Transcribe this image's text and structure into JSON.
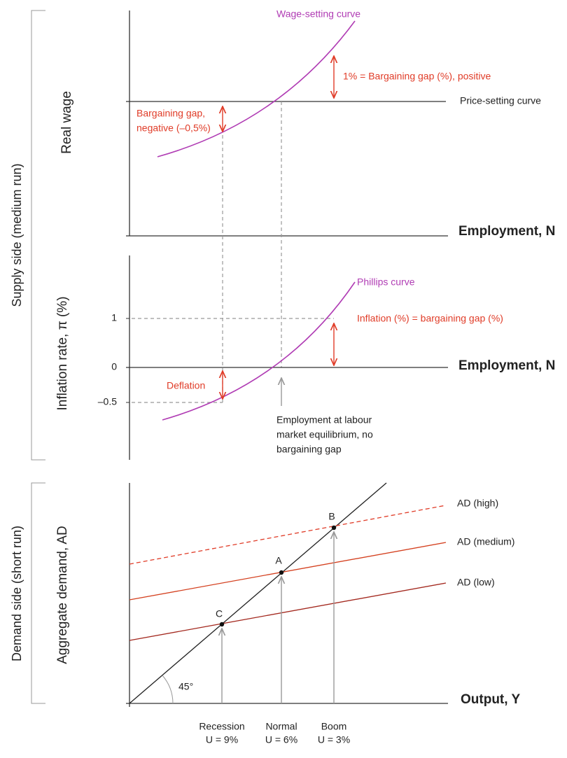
{
  "supply_side": {
    "label": "Supply side (medium run)",
    "labour_market": {
      "y_axis": "Real wage",
      "x_axis": "Employment, N",
      "wage_setting_curve": "Wage-setting curve",
      "price_setting_curve": "Price-setting curve",
      "positive_gap": "1% = Bargaining gap (%), positive",
      "negative_gap": [
        "Bargaining gap,",
        "negative (–0,5%)"
      ]
    },
    "phillips": {
      "y_axis": "Inflation rate, π (%)",
      "x_axis": "Employment, N",
      "curve": "Phillips curve",
      "ticks": [
        "1",
        "0",
        "–0.5"
      ],
      "inflation_note": "Inflation (%) = bargaining gap (%)",
      "deflation": "Deflation",
      "equilibrium_note": [
        "Employment at labour",
        "market equilibrium, no",
        "bargaining gap"
      ]
    }
  },
  "demand_side": {
    "label": "Demand side (short run)",
    "y_axis": "Aggregate demand, AD",
    "x_axis": "Output, Y",
    "angle": "45°",
    "lines": [
      "AD (high)",
      "AD (medium)",
      "AD (low)"
    ],
    "points": [
      "B",
      "A",
      "C"
    ],
    "outcomes": [
      {
        "name": "Recession",
        "unemployment": "U = 9%"
      },
      {
        "name": "Normal",
        "unemployment": "U = 6%"
      },
      {
        "name": "Boom",
        "unemployment": "U = 3%"
      }
    ]
  }
}
